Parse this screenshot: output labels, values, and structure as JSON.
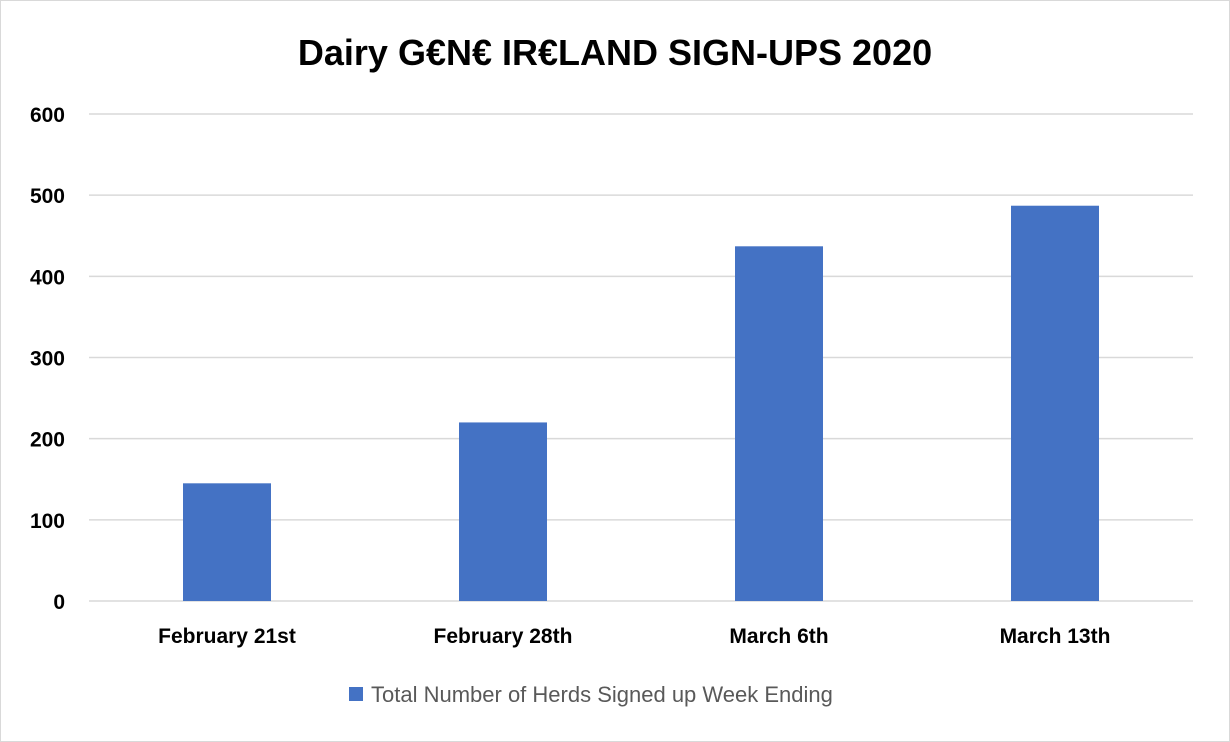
{
  "chart_data": {
    "type": "bar",
    "title": "Dairy G€N€ IR€LAND SIGN-UPS 2020",
    "xlabel": "",
    "ylabel": "",
    "categories": [
      "February 21st",
      "February 28th",
      "March 6th",
      "March 13th"
    ],
    "series": [
      {
        "name": "Total Number of Herds Signed up Week Ending",
        "values": [
          145,
          220,
          437,
          487
        ],
        "color": "#4472C4"
      }
    ],
    "ylim": [
      0,
      600
    ],
    "yticks": [
      0,
      100,
      200,
      300,
      400,
      500,
      600
    ],
    "grid": true,
    "legend_position": "bottom"
  }
}
